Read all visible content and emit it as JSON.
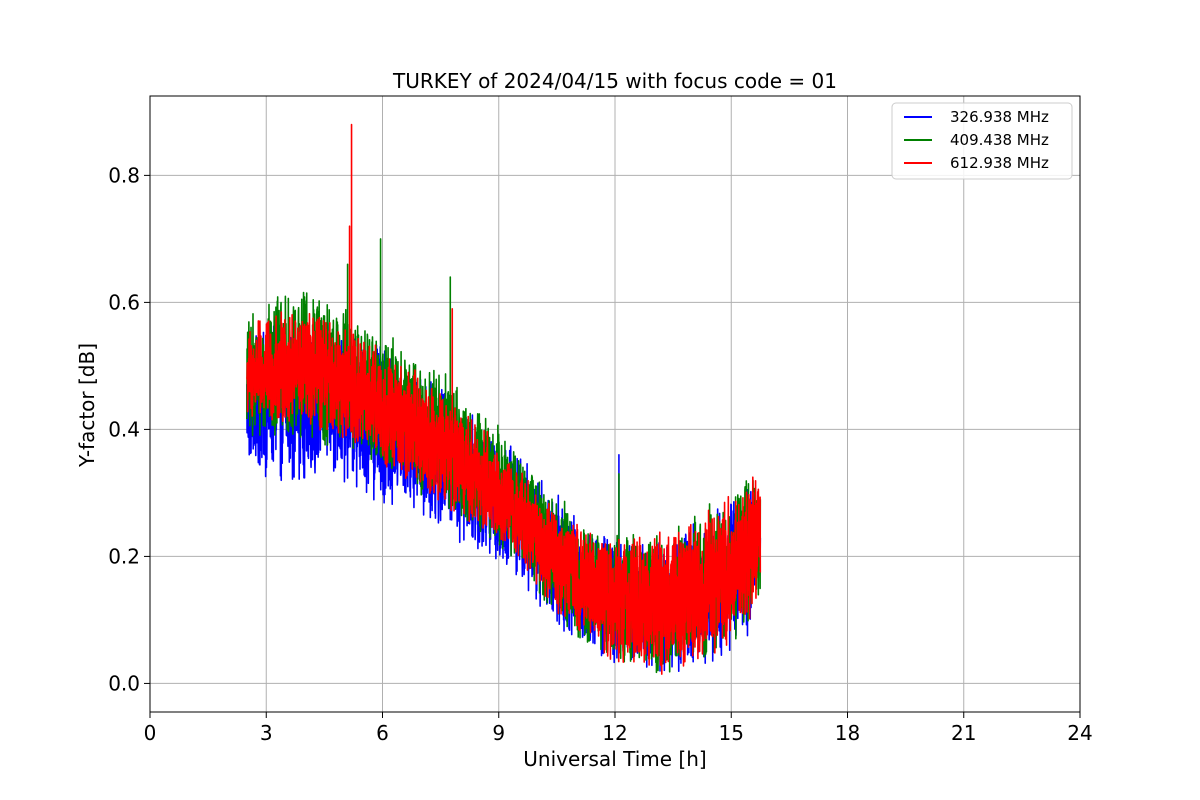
{
  "chart_data": {
    "type": "line",
    "title": "TURKEY of 2024/04/15 with focus code = 01",
    "xlabel": "Universal Time [h]",
    "ylabel": "Y-factor [dB]",
    "xlim": [
      0,
      24
    ],
    "ylim": [
      -0.045,
      0.925
    ],
    "xticks": [
      0,
      3,
      6,
      9,
      12,
      15,
      18,
      21,
      24
    ],
    "yticks": [
      0.0,
      0.2,
      0.4,
      0.6,
      0.8
    ],
    "xtick_labels": [
      "0",
      "3",
      "6",
      "9",
      "12",
      "15",
      "18",
      "21",
      "24"
    ],
    "ytick_labels": [
      "0.0",
      "0.2",
      "0.4",
      "0.6",
      "0.8"
    ],
    "grid": true,
    "legend_position": "top-right",
    "x_range_of_data": [
      2.5,
      15.75
    ],
    "series": [
      {
        "name": "326.938 MHz",
        "color": "#0000ff",
        "x": [
          2.5,
          3.0,
          3.5,
          4.0,
          4.5,
          5.0,
          5.5,
          6.0,
          6.5,
          7.0,
          7.5,
          8.0,
          8.5,
          9.0,
          9.5,
          10.0,
          10.5,
          11.0,
          11.5,
          12.0,
          12.5,
          13.0,
          13.5,
          14.0,
          14.5,
          15.0,
          15.5,
          15.75
        ],
        "low": [
          0.33,
          0.32,
          0.31,
          0.32,
          0.32,
          0.31,
          0.3,
          0.28,
          0.27,
          0.26,
          0.24,
          0.22,
          0.2,
          0.19,
          0.16,
          0.12,
          0.09,
          0.06,
          0.04,
          0.02,
          0.01,
          0.01,
          0.01,
          0.02,
          0.03,
          0.05,
          0.08,
          0.14
        ],
        "high": [
          0.55,
          0.56,
          0.57,
          0.58,
          0.57,
          0.56,
          0.55,
          0.53,
          0.51,
          0.49,
          0.47,
          0.45,
          0.42,
          0.4,
          0.37,
          0.33,
          0.3,
          0.27,
          0.25,
          0.24,
          0.23,
          0.23,
          0.24,
          0.26,
          0.28,
          0.3,
          0.32,
          0.33
        ],
        "spikes": [
          [
            12.1,
            0.36
          ]
        ]
      },
      {
        "name": "409.438 MHz",
        "color": "#008000",
        "x": [
          2.5,
          3.0,
          3.5,
          4.0,
          4.5,
          5.0,
          5.5,
          6.0,
          6.5,
          7.0,
          7.5,
          8.0,
          8.5,
          9.0,
          9.5,
          10.0,
          10.5,
          11.0,
          11.5,
          12.0,
          12.5,
          13.0,
          13.5,
          14.0,
          14.5,
          15.0,
          15.5,
          15.75
        ],
        "low": [
          0.38,
          0.38,
          0.38,
          0.38,
          0.37,
          0.36,
          0.35,
          0.33,
          0.31,
          0.29,
          0.27,
          0.25,
          0.23,
          0.21,
          0.18,
          0.14,
          0.1,
          0.07,
          0.05,
          0.03,
          0.02,
          0.01,
          0.01,
          0.02,
          0.04,
          0.06,
          0.09,
          0.14
        ],
        "high": [
          0.58,
          0.6,
          0.62,
          0.63,
          0.61,
          0.6,
          0.58,
          0.56,
          0.54,
          0.52,
          0.5,
          0.47,
          0.44,
          0.41,
          0.37,
          0.33,
          0.3,
          0.27,
          0.25,
          0.24,
          0.24,
          0.24,
          0.25,
          0.27,
          0.29,
          0.31,
          0.34,
          0.36
        ],
        "spikes": [
          [
            5.95,
            0.7
          ],
          [
            7.75,
            0.64
          ],
          [
            5.1,
            0.66
          ],
          [
            12.1,
            0.33
          ]
        ]
      },
      {
        "name": "612.938 MHz",
        "color": "#ff0000",
        "x": [
          2.5,
          3.0,
          3.5,
          4.0,
          4.5,
          5.0,
          5.5,
          6.0,
          6.5,
          7.0,
          7.5,
          8.0,
          8.5,
          9.0,
          9.5,
          10.0,
          10.5,
          11.0,
          11.5,
          12.0,
          12.5,
          13.0,
          13.5,
          14.0,
          14.5,
          15.0,
          15.5,
          15.75
        ],
        "low": [
          0.4,
          0.4,
          0.4,
          0.4,
          0.39,
          0.38,
          0.36,
          0.34,
          0.32,
          0.3,
          0.28,
          0.26,
          0.24,
          0.22,
          0.19,
          0.15,
          0.11,
          0.08,
          0.05,
          0.03,
          0.02,
          0.01,
          0.01,
          0.02,
          0.04,
          0.06,
          0.1,
          0.14
        ],
        "high": [
          0.57,
          0.58,
          0.59,
          0.59,
          0.58,
          0.57,
          0.55,
          0.53,
          0.51,
          0.49,
          0.47,
          0.44,
          0.41,
          0.38,
          0.34,
          0.31,
          0.28,
          0.26,
          0.24,
          0.23,
          0.23,
          0.24,
          0.25,
          0.26,
          0.28,
          0.3,
          0.33,
          0.35
        ],
        "spikes": [
          [
            5.2,
            0.88
          ],
          [
            5.15,
            0.72
          ],
          [
            7.8,
            0.59
          ]
        ]
      }
    ]
  }
}
